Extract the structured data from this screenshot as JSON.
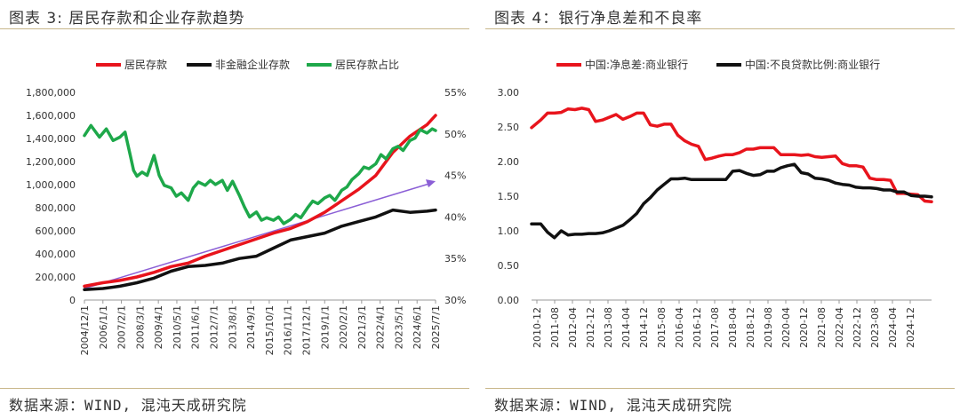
{
  "panels": [
    {
      "title": "图表 3:  居民存款和企业存款趋势",
      "source": "数据来源：WIND, 混沌天成研究院"
    },
    {
      "title": "图表 4：银行净息差和不良率",
      "source": "数据来源：WIND, 混沌天成研究院"
    }
  ],
  "chart_data": [
    {
      "type": "line",
      "title": "",
      "xlabel": "",
      "ylabel": "",
      "x_ticks": [
        "2004/12/1",
        "2006/1/1",
        "2007/2/1",
        "2008/3/1",
        "2009/4/1",
        "2010/5/1",
        "2011/6/1",
        "2012/7/1",
        "2013/8/1",
        "2014/9/1",
        "2015/10/1",
        "2016/11/1",
        "2017/12/1",
        "2019/1/1",
        "2020/2/1",
        "2021/3/1",
        "2022/4/1",
        "2023/5/1",
        "2024/6/1",
        "2025/7/1"
      ],
      "y_ticks": [
        "0",
        "200,000",
        "400,000",
        "600,000",
        "800,000",
        "1,000,000",
        "1,200,000",
        "1,400,000",
        "1,600,000",
        "1,800,000"
      ],
      "y2_ticks": [
        "30%",
        "35%",
        "40%",
        "45%",
        "50%",
        "55%"
      ],
      "ylim": [
        0,
        1800000
      ],
      "y2lim": [
        30,
        55
      ],
      "legend_position": "top",
      "grid": false,
      "x_start_year": 2004.92,
      "x_end_year": 2025.5,
      "series": [
        {
          "name": "居民存款",
          "color": "#e8141c",
          "axis": "left",
          "x": [
            2004.92,
            2006,
            2007,
            2008,
            2009,
            2010,
            2011,
            2012,
            2013,
            2014,
            2015,
            2016,
            2017,
            2018,
            2019,
            2020,
            2021,
            2022,
            2023,
            2024,
            2025.0,
            2025.5
          ],
          "y": [
            120000,
            150000,
            170000,
            200000,
            240000,
            290000,
            320000,
            380000,
            430000,
            480000,
            530000,
            580000,
            620000,
            680000,
            760000,
            860000,
            960000,
            1080000,
            1280000,
            1420000,
            1520000,
            1600000
          ]
        },
        {
          "name": "非金融企业存款",
          "color": "#111111",
          "axis": "left",
          "x": [
            2004.92,
            2006,
            2007,
            2008,
            2009,
            2010,
            2011,
            2012,
            2013,
            2014,
            2015,
            2016,
            2017,
            2018,
            2019,
            2020,
            2021,
            2022,
            2023,
            2024,
            2025.0,
            2025.5
          ],
          "y": [
            90000,
            100000,
            120000,
            150000,
            190000,
            250000,
            290000,
            300000,
            320000,
            360000,
            380000,
            450000,
            520000,
            550000,
            580000,
            640000,
            680000,
            720000,
            780000,
            760000,
            770000,
            780000
          ]
        },
        {
          "name": "居民存款占比",
          "color": "#1ea84a",
          "axis": "right",
          "x": [
            2004.92,
            2005.3,
            2005.8,
            2006.2,
            2006.6,
            2007.0,
            2007.3,
            2007.6,
            2007.8,
            2008.0,
            2008.3,
            2008.6,
            2009.0,
            2009.3,
            2009.6,
            2010.0,
            2010.3,
            2010.6,
            2011.0,
            2011.3,
            2011.6,
            2012.0,
            2012.3,
            2012.6,
            2013.0,
            2013.3,
            2013.6,
            2014.0,
            2014.3,
            2014.6,
            2015.0,
            2015.3,
            2015.6,
            2016.0,
            2016.3,
            2016.6,
            2017.0,
            2017.3,
            2017.6,
            2018.0,
            2018.3,
            2018.6,
            2019.0,
            2019.3,
            2019.6,
            2020.0,
            2020.3,
            2020.6,
            2021.0,
            2021.3,
            2021.6,
            2022.0,
            2022.3,
            2022.6,
            2023.0,
            2023.3,
            2023.6,
            2024.0,
            2024.3,
            2024.6,
            2025.0,
            2025.3,
            2025.5
          ],
          "y": [
            49.8,
            51.0,
            49.6,
            50.6,
            49.2,
            49.6,
            50.2,
            47.5,
            45.6,
            44.9,
            45.4,
            45.0,
            47.4,
            45.0,
            43.8,
            43.5,
            42.5,
            42.9,
            42.0,
            43.5,
            44.2,
            43.8,
            44.4,
            43.9,
            44.4,
            43.2,
            44.3,
            42.6,
            41.2,
            40.0,
            40.6,
            39.6,
            39.9,
            39.6,
            40.0,
            39.2,
            39.7,
            40.3,
            39.9,
            41.1,
            41.9,
            41.6,
            42.3,
            42.6,
            42.0,
            43.2,
            43.6,
            44.5,
            45.2,
            46.0,
            45.8,
            46.4,
            47.5,
            47.0,
            48.2,
            48.5,
            48.0,
            49.2,
            49.5,
            50.5,
            50.1,
            50.6,
            50.4
          ]
        }
      ],
      "trendline": {
        "color": "#8b5fd6",
        "axis": "left",
        "x": [
          2004.92,
          2025.5
        ],
        "y": [
          100000,
          1030000
        ]
      }
    },
    {
      "type": "line",
      "title": "",
      "xlabel": "",
      "ylabel": "",
      "x_ticks": [
        "2010-12",
        "2011-08",
        "2012-04",
        "2012-12",
        "2013-08",
        "2014-04",
        "2014-12",
        "2015-08",
        "2016-04",
        "2016-12",
        "2017-08",
        "2018-04",
        "2018-12",
        "2019-08",
        "2020-04",
        "2020-12",
        "2021-08",
        "2022-04",
        "2022-12",
        "2023-08",
        "2024-04",
        "2024-12"
      ],
      "y_ticks": [
        "0.00",
        "0.50",
        "1.00",
        "1.50",
        "2.00",
        "2.50",
        "3.00"
      ],
      "ylim": [
        0,
        3
      ],
      "legend_position": "top",
      "grid": false,
      "x_start_year": 2010.917,
      "x_end_year": 2025.5,
      "series": [
        {
          "name": "中国:净息差:商业银行",
          "color": "#e8141c",
          "x": [
            2010.917,
            2011.25,
            2011.5,
            2011.75,
            2012.0,
            2012.25,
            2012.5,
            2012.75,
            2013.0,
            2013.25,
            2013.5,
            2013.75,
            2014.0,
            2014.25,
            2014.5,
            2014.75,
            2015.0,
            2015.25,
            2015.5,
            2015.75,
            2016.0,
            2016.25,
            2016.5,
            2016.75,
            2017.0,
            2017.25,
            2017.5,
            2017.75,
            2018.0,
            2018.25,
            2018.5,
            2018.75,
            2019.0,
            2019.25,
            2019.5,
            2019.75,
            2020.0,
            2020.25,
            2020.5,
            2020.75,
            2021.0,
            2021.25,
            2021.5,
            2021.75,
            2022.0,
            2022.25,
            2022.5,
            2022.75,
            2023.0,
            2023.25,
            2023.5,
            2023.75,
            2024.0,
            2024.25,
            2024.5,
            2024.75,
            2025.0,
            2025.25,
            2025.5
          ],
          "y": [
            2.49,
            2.6,
            2.7,
            2.7,
            2.71,
            2.76,
            2.75,
            2.77,
            2.75,
            2.58,
            2.6,
            2.64,
            2.68,
            2.61,
            2.65,
            2.7,
            2.7,
            2.53,
            2.51,
            2.54,
            2.54,
            2.38,
            2.3,
            2.25,
            2.22,
            2.03,
            2.05,
            2.08,
            2.1,
            2.1,
            2.13,
            2.18,
            2.18,
            2.2,
            2.2,
            2.2,
            2.1,
            2.1,
            2.1,
            2.09,
            2.1,
            2.07,
            2.06,
            2.07,
            2.08,
            1.97,
            1.94,
            1.94,
            1.92,
            1.76,
            1.74,
            1.74,
            1.73,
            1.54,
            1.54,
            1.53,
            1.52,
            1.43,
            1.42
          ]
        },
        {
          "name": "中国:不良贷款比例:商业银行",
          "color": "#111111",
          "x": [
            2010.917,
            2011.25,
            2011.5,
            2011.75,
            2012.0,
            2012.25,
            2012.5,
            2012.75,
            2013.0,
            2013.25,
            2013.5,
            2013.75,
            2014.0,
            2014.25,
            2014.5,
            2014.75,
            2015.0,
            2015.25,
            2015.5,
            2015.75,
            2016.0,
            2016.25,
            2016.5,
            2016.75,
            2017.0,
            2017.25,
            2017.5,
            2017.75,
            2018.0,
            2018.25,
            2018.5,
            2018.75,
            2019.0,
            2019.25,
            2019.5,
            2019.75,
            2020.0,
            2020.25,
            2020.5,
            2020.75,
            2021.0,
            2021.25,
            2021.5,
            2021.75,
            2022.0,
            2022.25,
            2022.5,
            2022.75,
            2023.0,
            2023.25,
            2023.5,
            2023.75,
            2024.0,
            2024.25,
            2024.5,
            2024.75,
            2025.0,
            2025.25,
            2025.5
          ],
          "y": [
            1.1,
            1.1,
            0.98,
            0.9,
            1.0,
            0.94,
            0.95,
            0.95,
            0.96,
            0.96,
            0.97,
            1.0,
            1.04,
            1.08,
            1.16,
            1.25,
            1.39,
            1.48,
            1.59,
            1.67,
            1.75,
            1.75,
            1.76,
            1.74,
            1.74,
            1.74,
            1.74,
            1.74,
            1.74,
            1.86,
            1.87,
            1.83,
            1.8,
            1.81,
            1.86,
            1.86,
            1.91,
            1.94,
            1.96,
            1.84,
            1.82,
            1.76,
            1.75,
            1.73,
            1.69,
            1.67,
            1.66,
            1.63,
            1.62,
            1.62,
            1.61,
            1.59,
            1.59,
            1.56,
            1.56,
            1.51,
            1.5,
            1.5,
            1.49
          ]
        }
      ]
    }
  ]
}
